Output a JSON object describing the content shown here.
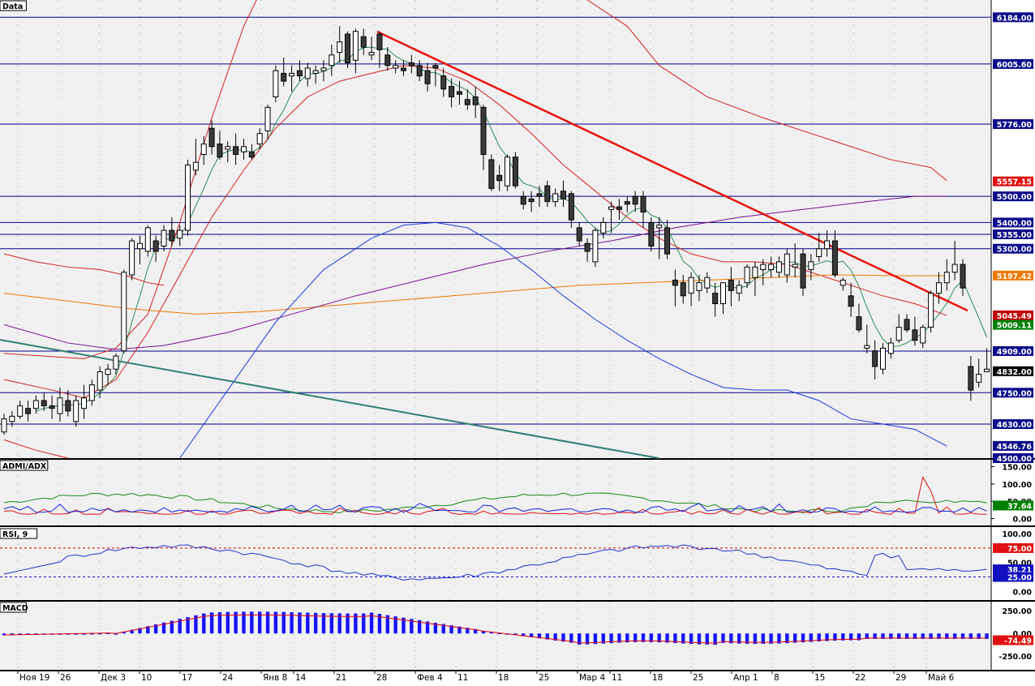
{
  "panes": {
    "price": {
      "label": "Data"
    },
    "admi": {
      "label": "ADMI/ADX"
    },
    "rsi": {
      "label": "RSI, 9"
    },
    "macd": {
      "label": "MACD"
    }
  },
  "colors": {
    "background": "#f0f0f0",
    "axis_background": "#ffffff",
    "price_line": "#00008b",
    "trend_line": "#e8140c",
    "long_trend_line": "#2f7f73",
    "candle_up": "#ffffff",
    "candle_down": "#3a3a3a",
    "candle_outline": "#000000",
    "ma_green": "#2e8b57",
    "ma_red": "#d42020",
    "ma_orange": "#f07800",
    "ma_purple": "#7a1090",
    "ma_blue": "#1c3cd8",
    "rsi_line": "#2030d0",
    "macd_hist": "#1414ff",
    "macd_signal": "#e00000"
  },
  "chart_data": [
    {
      "type": "candlestick",
      "pane": "price",
      "ylim": [
        4500,
        6250
      ],
      "x_tick_labels": [
        "Ноя 19",
        "26",
        "Дек 3",
        "10",
        "17",
        "24",
        "Янв 8",
        "14",
        "21",
        "28",
        "Фев 4",
        "11",
        "18",
        "25",
        "Мар 4",
        "11",
        "18",
        "25",
        "Апр 1",
        "8",
        "15",
        "22",
        "29",
        "Май 6"
      ],
      "horizontal_lines": [
        6184.0,
        6005.6,
        5776.0,
        5500.0,
        5400.0,
        5355.0,
        5300.0,
        4909.0,
        4750.0,
        4630.0
      ],
      "y_tag_labels": [
        {
          "value": 6184.0,
          "text": "6184.00",
          "style": "blue"
        },
        {
          "value": 6005.6,
          "text": "6005.60",
          "style": "blue"
        },
        {
          "value": 5776.0,
          "text": "5776.00",
          "style": "blue"
        },
        {
          "value": 5557.15,
          "text": "5557.15",
          "style": "red"
        },
        {
          "value": 5500.0,
          "text": "5500.00",
          "style": "blue"
        },
        {
          "value": 5400.0,
          "text": "5400.00",
          "style": "blue"
        },
        {
          "value": 5355.0,
          "text": "5355.00",
          "style": "blue"
        },
        {
          "value": 5300.0,
          "text": "5300.00",
          "style": "blue"
        },
        {
          "value": 5197.42,
          "text": "5197.42",
          "style": "orange"
        },
        {
          "value": 5045.49,
          "text": "5045.49",
          "style": "darkred"
        },
        {
          "value": 5009.11,
          "text": "5009.11",
          "style": "green"
        },
        {
          "value": 4909.0,
          "text": "4909.00",
          "style": "blue"
        },
        {
          "value": 4832.0,
          "text": "4832.00",
          "style": "black"
        },
        {
          "value": 4750.0,
          "text": "4750.00",
          "style": "blue"
        },
        {
          "value": 4630.0,
          "text": "4630.00",
          "style": "blue"
        },
        {
          "value": 4546.76,
          "text": "4546.76",
          "style": "blue"
        },
        {
          "value": 4500.0,
          "text": "4500.00",
          "style": "blue"
        }
      ],
      "candles": [
        [
          4600,
          4670,
          4590,
          4650
        ],
        [
          4640,
          4680,
          4620,
          4660
        ],
        [
          4660,
          4720,
          4650,
          4700
        ],
        [
          4690,
          4720,
          4640,
          4670
        ],
        [
          4690,
          4740,
          4670,
          4720
        ],
        [
          4720,
          4750,
          4680,
          4700
        ],
        [
          4700,
          4740,
          4650,
          4690
        ],
        [
          4670,
          4770,
          4640,
          4730
        ],
        [
          4720,
          4760,
          4660,
          4680
        ],
        [
          4640,
          4740,
          4620,
          4720
        ],
        [
          4690,
          4780,
          4650,
          4730
        ],
        [
          4720,
          4800,
          4700,
          4780
        ],
        [
          4760,
          4850,
          4730,
          4830
        ],
        [
          4820,
          4860,
          4780,
          4840
        ],
        [
          4840,
          4900,
          4820,
          4890
        ],
        [
          4910,
          5220,
          4900,
          5210
        ],
        [
          5200,
          5340,
          5180,
          5330
        ],
        [
          5300,
          5350,
          5240,
          5320
        ],
        [
          5290,
          5390,
          5270,
          5380
        ],
        [
          5330,
          5350,
          5250,
          5290
        ],
        [
          5310,
          5390,
          5290,
          5370
        ],
        [
          5370,
          5420,
          5310,
          5330
        ],
        [
          5340,
          5390,
          5310,
          5370
        ],
        [
          5370,
          5640,
          5350,
          5620
        ],
        [
          5600,
          5720,
          5580,
          5630
        ],
        [
          5660,
          5730,
          5620,
          5700
        ],
        [
          5760,
          5790,
          5660,
          5690
        ],
        [
          5700,
          5750,
          5640,
          5650
        ],
        [
          5680,
          5710,
          5630,
          5690
        ],
        [
          5690,
          5740,
          5620,
          5660
        ],
        [
          5670,
          5720,
          5640,
          5690
        ],
        [
          5670,
          5700,
          5640,
          5650
        ],
        [
          5700,
          5760,
          5680,
          5740
        ],
        [
          5750,
          5850,
          5720,
          5840
        ],
        [
          5880,
          6000,
          5860,
          5980
        ],
        [
          5970,
          6030,
          5920,
          5940
        ],
        [
          5960,
          6000,
          5900,
          5970
        ],
        [
          5980,
          6020,
          5940,
          5960
        ],
        [
          5950,
          6010,
          5920,
          5990
        ],
        [
          5970,
          6000,
          5930,
          5980
        ],
        [
          5980,
          6020,
          5940,
          5990
        ],
        [
          6000,
          6080,
          5960,
          6040
        ],
        [
          6050,
          6150,
          6010,
          6090
        ],
        [
          6120,
          6130,
          5990,
          6010
        ],
        [
          6020,
          6140,
          5970,
          6130
        ],
        [
          6110,
          6140,
          6040,
          6070
        ],
        [
          6040,
          6110,
          6020,
          6050
        ],
        [
          6120,
          6130,
          5990,
          6060
        ],
        [
          6040,
          6070,
          5980,
          6000
        ],
        [
          5990,
          6020,
          5970,
          6000
        ],
        [
          5990,
          6020,
          5960,
          5980
        ],
        [
          6010,
          6040,
          5970,
          6000
        ],
        [
          6000,
          6020,
          5940,
          5960
        ],
        [
          5980,
          6010,
          5900,
          5930
        ],
        [
          6000,
          6010,
          5920,
          5990
        ],
        [
          5960,
          5990,
          5880,
          5910
        ],
        [
          5920,
          5950,
          5840,
          5880
        ],
        [
          5900,
          5940,
          5850,
          5890
        ],
        [
          5870,
          5910,
          5830,
          5850
        ],
        [
          5880,
          5920,
          5800,
          5850
        ],
        [
          5840,
          5850,
          5600,
          5660
        ],
        [
          5640,
          5660,
          5520,
          5530
        ],
        [
          5580,
          5620,
          5520,
          5560
        ],
        [
          5540,
          5660,
          5520,
          5650
        ],
        [
          5650,
          5670,
          5530,
          5540
        ],
        [
          5500,
          5520,
          5450,
          5470
        ],
        [
          5490,
          5520,
          5440,
          5480
        ],
        [
          5510,
          5540,
          5460,
          5500
        ],
        [
          5540,
          5560,
          5460,
          5480
        ],
        [
          5480,
          5530,
          5460,
          5510
        ],
        [
          5520,
          5560,
          5460,
          5490
        ],
        [
          5510,
          5520,
          5380,
          5410
        ],
        [
          5380,
          5400,
          5310,
          5330
        ],
        [
          5320,
          5340,
          5250,
          5290
        ],
        [
          5250,
          5380,
          5230,
          5370
        ],
        [
          5360,
          5420,
          5340,
          5400
        ],
        [
          5450,
          5480,
          5360,
          5460
        ],
        [
          5460,
          5490,
          5410,
          5450
        ],
        [
          5480,
          5500,
          5440,
          5470
        ],
        [
          5500,
          5520,
          5440,
          5470
        ],
        [
          5500,
          5520,
          5380,
          5440
        ],
        [
          5400,
          5420,
          5290,
          5310
        ],
        [
          5380,
          5420,
          5260,
          5390
        ],
        [
          5380,
          5410,
          5260,
          5280
        ],
        [
          5180,
          5220,
          5080,
          5160
        ],
        [
          5170,
          5200,
          5090,
          5120
        ],
        [
          5130,
          5210,
          5080,
          5190
        ],
        [
          5140,
          5200,
          5100,
          5170
        ],
        [
          5150,
          5210,
          5130,
          5190
        ],
        [
          5130,
          5170,
          5040,
          5090
        ],
        [
          5090,
          5170,
          5050,
          5170
        ],
        [
          5180,
          5230,
          5080,
          5140
        ],
        [
          5130,
          5180,
          5100,
          5160
        ],
        [
          5170,
          5240,
          5150,
          5230
        ],
        [
          5190,
          5250,
          5120,
          5230
        ],
        [
          5220,
          5260,
          5160,
          5240
        ],
        [
          5220,
          5270,
          5190,
          5240
        ],
        [
          5210,
          5270,
          5190,
          5250
        ],
        [
          5200,
          5300,
          5170,
          5280
        ],
        [
          5230,
          5320,
          5190,
          5240
        ],
        [
          5280,
          5300,
          5120,
          5150
        ],
        [
          5220,
          5280,
          5180,
          5250
        ],
        [
          5270,
          5360,
          5250,
          5300
        ],
        [
          5300,
          5370,
          5270,
          5330
        ],
        [
          5330,
          5370,
          5190,
          5200
        ],
        [
          5160,
          5190,
          5140,
          5180
        ],
        [
          5120,
          5170,
          5040,
          5080
        ],
        [
          5040,
          5090,
          4980,
          4990
        ],
        [
          4920,
          5010,
          4900,
          4930
        ],
        [
          4910,
          4950,
          4800,
          4850
        ],
        [
          4840,
          4940,
          4820,
          4920
        ],
        [
          4900,
          4960,
          4880,
          4940
        ],
        [
          4950,
          5050,
          4940,
          5000
        ],
        [
          5030,
          5050,
          4980,
          4990
        ],
        [
          4990,
          5040,
          4930,
          4950
        ],
        [
          4940,
          5010,
          4920,
          5000
        ],
        [
          5000,
          5140,
          4980,
          5130
        ],
        [
          5130,
          5210,
          5090,
          5170
        ],
        [
          5170,
          5260,
          5140,
          5210
        ],
        [
          5210,
          5330,
          5180,
          5240
        ],
        [
          5240,
          5260,
          5120,
          5150
        ],
        [
          4850,
          4890,
          4720,
          4760
        ],
        [
          4790,
          4880,
          4770,
          4820
        ],
        [
          4830,
          4920,
          4830,
          4840
        ]
      ]
    },
    {
      "type": "line",
      "pane": "admi",
      "ylim": [
        -20,
        170
      ],
      "y_tick_labels": [
        "150.00",
        "100.00",
        "50.00",
        "0.00"
      ],
      "tag": {
        "value": 37.64,
        "text": "37.64",
        "style": "green"
      },
      "series": []
    },
    {
      "type": "line",
      "pane": "rsi",
      "ylim": [
        -15,
        110
      ],
      "y_tick_labels": [
        "100.00",
        "50.00",
        "0.00"
      ],
      "levels": [
        75,
        25
      ],
      "tags": [
        {
          "value": 75.0,
          "text": "75.00",
          "style": "red"
        },
        {
          "value": 38.21,
          "text": "38.21",
          "style": "blue"
        },
        {
          "value": 25.0,
          "text": "25.00",
          "style": "blue"
        }
      ]
    },
    {
      "type": "bar",
      "pane": "macd",
      "ylim": [
        -400,
        350
      ],
      "y_tick_labels": [
        "250.00",
        "0.00",
        "-250.00"
      ],
      "tag": {
        "value": -74.49,
        "text": "-74.49",
        "style": "red"
      }
    }
  ]
}
